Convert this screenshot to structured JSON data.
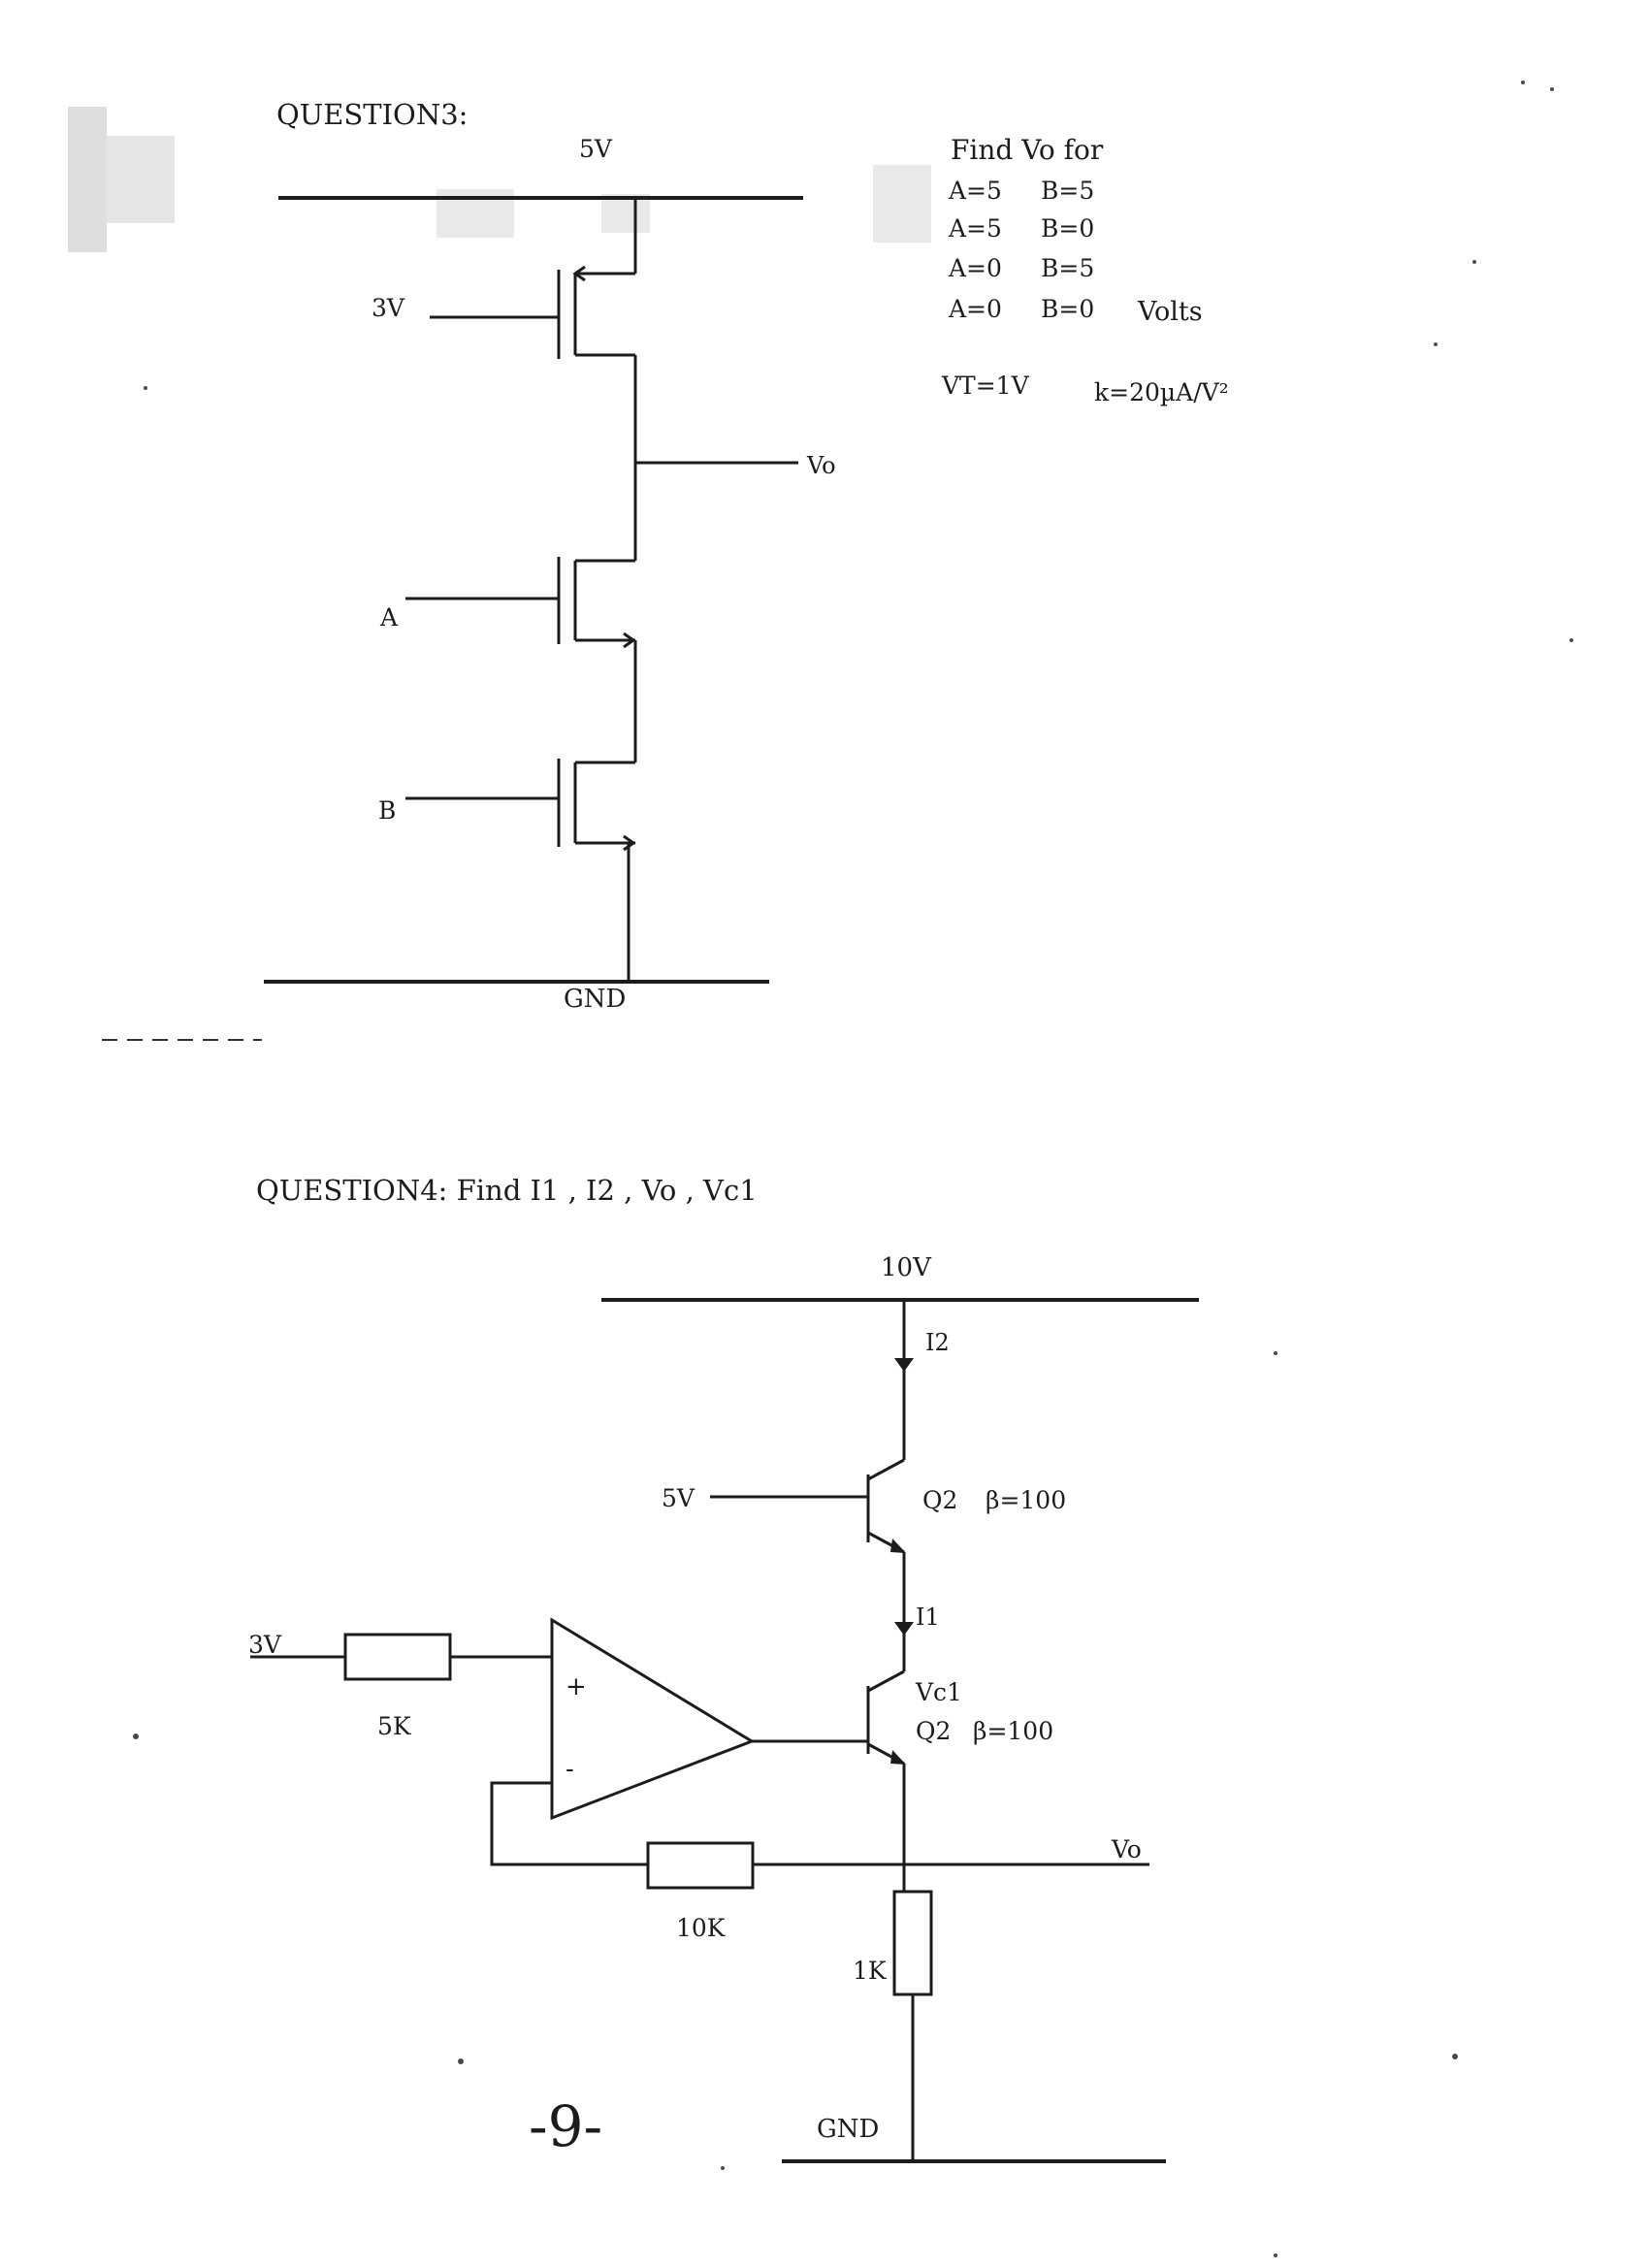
{
  "question3": {
    "title": "QUESTION3:",
    "supply_label": "5V",
    "gate_bias_label": "3V",
    "output_label": "Vo",
    "input_a_label": "A",
    "input_b_label": "B",
    "ground_label": "GND",
    "instructions": {
      "heading": "Find Vo for",
      "cases": [
        {
          "a": "A=5",
          "b": "B=5"
        },
        {
          "a": "A=5",
          "b": "B=0"
        },
        {
          "a": "A=0",
          "b": "B=5"
        },
        {
          "a": "A=0",
          "b": "B=0"
        }
      ],
      "units": "Volts",
      "vt": "VT=1V",
      "k": "k=20µA/V²"
    }
  },
  "question4": {
    "title": "QUESTION4: Find I1 , I2 , Vo , Vc1",
    "supply_label": "10V",
    "current_i2_label": "I2",
    "current_i1_label": "I1",
    "q_upper": {
      "base_label": "5V",
      "name": "Q2",
      "beta": "β=100"
    },
    "q_lower": {
      "collector_label": "Vc1",
      "name": "Q2",
      "beta": "β=100"
    },
    "input_label": "3V",
    "r_input_label": "5K",
    "r_feedback_label": "10K",
    "r_load_label": "1K",
    "opamp_plus": "+",
    "opamp_minus": "-",
    "output_label": "Vo",
    "ground_label": "GND"
  },
  "page_number": "-9-"
}
